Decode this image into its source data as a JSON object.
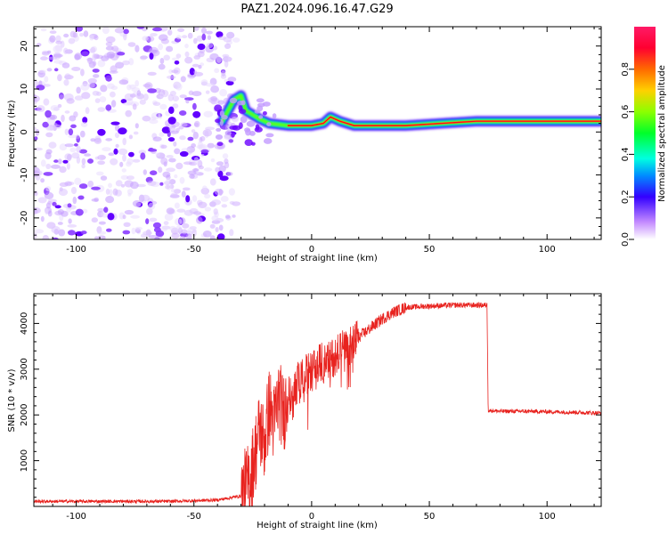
{
  "title": "PAZ1.2024.096.16.47.G29",
  "chart_data": [
    {
      "type": "heatmap",
      "xlabel": "Height of straight line (km)",
      "ylabel": "Frequency (Hz)",
      "xlim": [
        -118,
        123
      ],
      "ylim": [
        -25,
        24.5
      ],
      "x_ticks": [
        -100,
        -50,
        0,
        50,
        100
      ],
      "y_ticks": [
        -20,
        -10,
        0,
        10,
        20
      ],
      "colorbar": {
        "label": "Normalized spectral amplitude",
        "range": [
          0,
          1
        ],
        "ticks": [
          0.0,
          0.2,
          0.4,
          0.6,
          0.8
        ],
        "tick_labels": [
          "0.0",
          "0.2",
          "0.4",
          "0.6",
          "0.8"
        ],
        "colormap": "gist_rainbow_r"
      },
      "features": {
        "noise_region_x": [
          -118,
          -32
        ],
        "transition_x": [
          -32,
          -15
        ],
        "tone_track": [
          [
            -38,
            2.5
          ],
          [
            -33,
            7.5
          ],
          [
            -30,
            8.5
          ],
          [
            -28,
            5
          ],
          [
            -25,
            4
          ],
          [
            -22,
            3
          ],
          [
            -18,
            2
          ],
          [
            -10,
            1.5
          ],
          [
            0,
            1.5
          ],
          [
            5,
            2
          ],
          [
            8,
            3.5
          ],
          [
            12,
            2.5
          ],
          [
            18,
            1.5
          ],
          [
            40,
            1.5
          ],
          [
            70,
            2.5
          ],
          [
            100,
            2.5
          ],
          [
            123,
            2.5
          ]
        ]
      }
    },
    {
      "type": "line",
      "xlabel": "Height of straight line (km)",
      "ylabel": "SNR (10 * v/v)",
      "xlim": [
        -118,
        123
      ],
      "ylim": [
        0,
        4650
      ],
      "x_ticks": [
        -100,
        -50,
        0,
        50,
        100
      ],
      "y_ticks": [
        1000,
        2000,
        3000,
        4000
      ],
      "color": "#e8231f",
      "series": [
        {
          "x": [
            -118,
            -100,
            -80,
            -60,
            -40,
            -30,
            -27,
            -25,
            -22,
            -20,
            -18,
            -16,
            -14,
            -12,
            -10,
            -8,
            -6,
            -4,
            -2,
            0,
            2,
            4,
            6,
            8,
            10,
            12,
            15,
            18,
            20,
            25,
            30,
            35,
            40,
            50,
            60,
            70,
            74.5,
            75,
            80,
            90,
            100,
            110,
            123
          ],
          "y": [
            110,
            110,
            110,
            110,
            140,
            230,
            500,
            900,
            1700,
            1400,
            2200,
            1800,
            2400,
            2000,
            2500,
            2300,
            2700,
            2800,
            2900,
            2950,
            3050,
            3150,
            3100,
            3200,
            3300,
            3500,
            3400,
            3600,
            3700,
            3900,
            4100,
            4250,
            4350,
            4380,
            4400,
            4400,
            4400,
            2100,
            2080,
            2080,
            2070,
            2060,
            2040
          ]
        }
      ]
    }
  ]
}
